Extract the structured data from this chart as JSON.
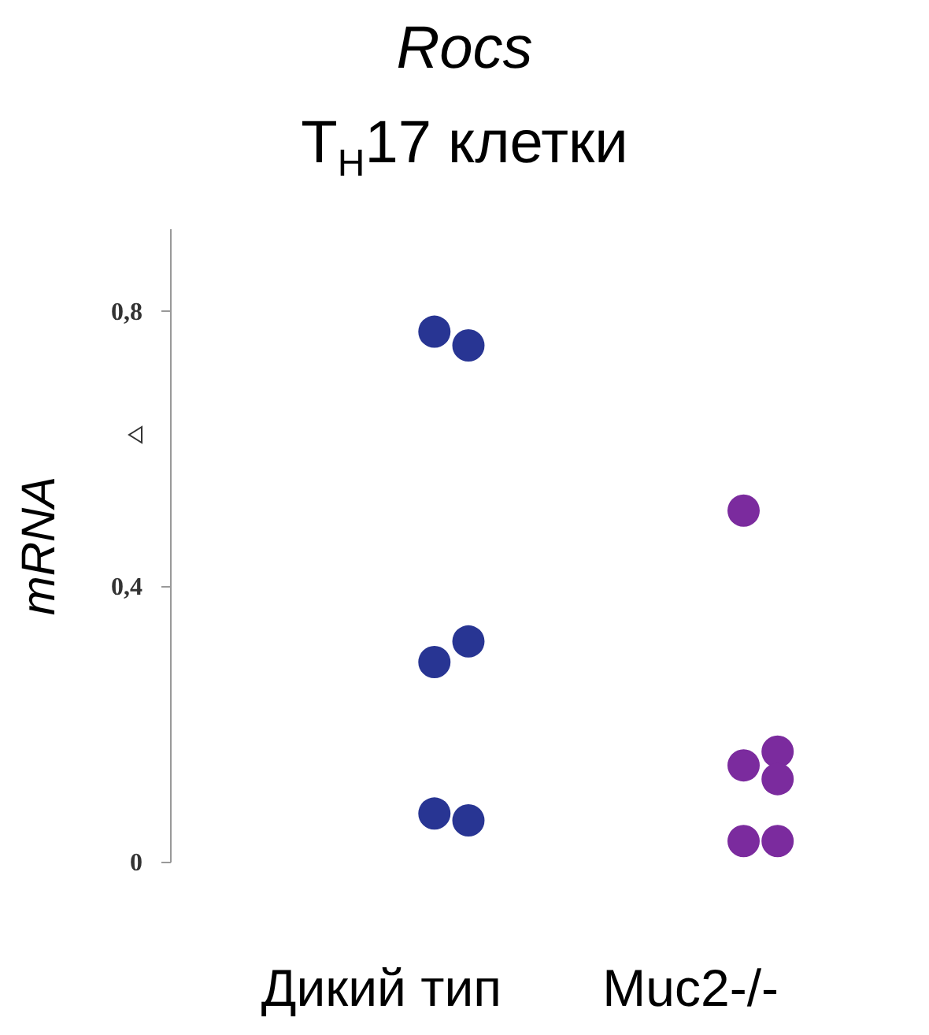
{
  "chart_data": {
    "type": "scatter",
    "title": "Rocs",
    "subtitle": "T$_{H}$17 клетки",
    "ylabel": "mRNA",
    "categories": [
      "Дикий тип",
      "Muc2-/-"
    ],
    "series": [
      {
        "color": "#283593",
        "x": [
          "Дикий тип",
          "Дикий тип",
          "Дикий тип",
          "Дикий тип",
          "Дикий тип",
          "Дикий тип"
        ],
        "values": [
          0.77,
          0.75,
          0.29,
          0.32,
          0.07,
          0.06
        ]
      },
      {
        "color": "#7b2b9e",
        "x": [
          "Muc2-/-",
          "Muc2-/-",
          "Muc2-/-",
          "Muc2-/-",
          "Muc2-/-",
          "Muc2-/-"
        ],
        "values": [
          0.51,
          0.16,
          0.14,
          0.12,
          0.03,
          0.03
        ]
      }
    ],
    "ylim": [
      0,
      0.92
    ],
    "yticks": [
      {
        "value": 0,
        "label": "0"
      },
      {
        "value": 0.4,
        "label": "0,4"
      },
      {
        "value": 0.8,
        "label": "0,8"
      }
    ],
    "marker": "circle",
    "grid": false,
    "legend": false
  }
}
